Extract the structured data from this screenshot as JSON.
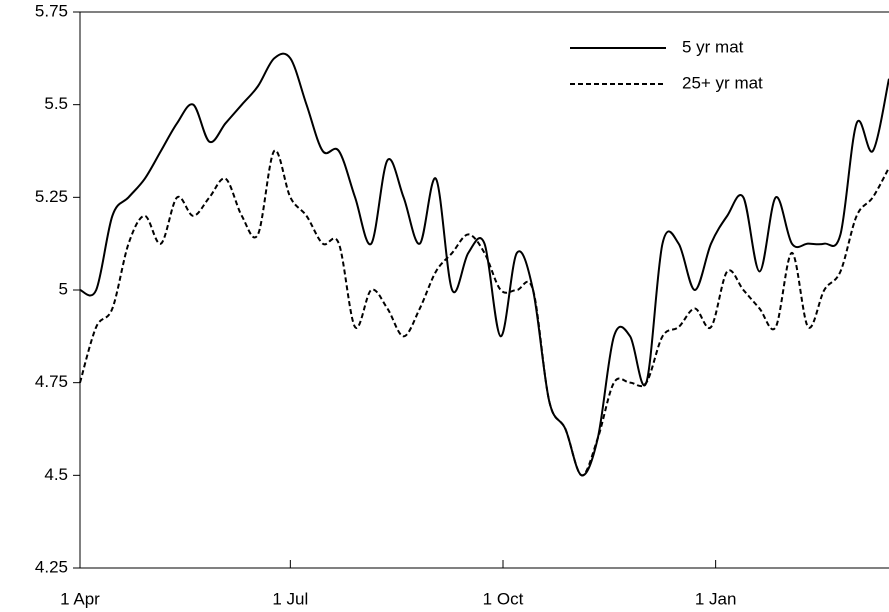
{
  "chart_data": {
    "type": "line",
    "x": [
      0,
      7,
      14,
      21,
      28,
      35,
      42,
      49,
      56,
      63,
      70,
      77,
      84,
      91,
      98,
      105,
      112,
      119,
      126,
      133,
      140,
      147,
      154,
      161,
      168,
      175,
      182,
      189,
      196,
      203,
      210,
      217,
      224,
      231,
      238,
      245,
      252,
      259,
      266,
      273,
      280,
      287,
      294,
      301,
      308,
      315,
      322,
      329,
      336,
      343,
      350
    ],
    "xlim": [
      0,
      350
    ],
    "xticks": [
      {
        "value": 0,
        "label": "1 Apr"
      },
      {
        "value": 91,
        "label": "1 Jul"
      },
      {
        "value": 183,
        "label": "1 Oct"
      },
      {
        "value": 275,
        "label": "1 Jan"
      }
    ],
    "ylim": [
      4.25,
      5.75
    ],
    "yticks": [
      4.25,
      4.5,
      4.75,
      5,
      5.25,
      5.5,
      5.75
    ],
    "legend": "upper right",
    "series": [
      {
        "name": "5 yr mat",
        "color": "#000000",
        "dash": "solid",
        "values": [
          5.0,
          5.0,
          5.2,
          5.25,
          5.3,
          5.375,
          5.45,
          5.5,
          5.4,
          5.45,
          5.5,
          5.55,
          5.625,
          5.625,
          5.5,
          5.375,
          5.375,
          5.25,
          5.125,
          5.35,
          5.25,
          5.125,
          5.3,
          5.0,
          5.1,
          5.125,
          4.875,
          5.1,
          5.0,
          4.7,
          4.625,
          4.5,
          4.6,
          4.875,
          4.875,
          4.75,
          5.125,
          5.125,
          5.0,
          5.125,
          5.2,
          5.25,
          5.05,
          5.25,
          5.125,
          5.125,
          5.125,
          5.15,
          5.45,
          5.375,
          5.57
        ]
      },
      {
        "name": "25+ yr mat",
        "color": "#000000",
        "dash": "dashed",
        "values": [
          4.75,
          4.9,
          4.95,
          5.125,
          5.2,
          5.125,
          5.25,
          5.2,
          5.25,
          5.3,
          5.2,
          5.15,
          5.375,
          5.25,
          5.2,
          5.125,
          5.125,
          4.9,
          5.0,
          4.95,
          4.875,
          4.95,
          5.05,
          5.1,
          5.15,
          5.1,
          5.0,
          5.0,
          5.0,
          4.7,
          4.625,
          4.5,
          4.6,
          4.75,
          4.75,
          4.75,
          4.875,
          4.9,
          4.95,
          4.9,
          5.05,
          5.0,
          4.95,
          4.9,
          5.1,
          4.9,
          5.0,
          5.05,
          5.2,
          5.25,
          5.33
        ]
      }
    ]
  }
}
